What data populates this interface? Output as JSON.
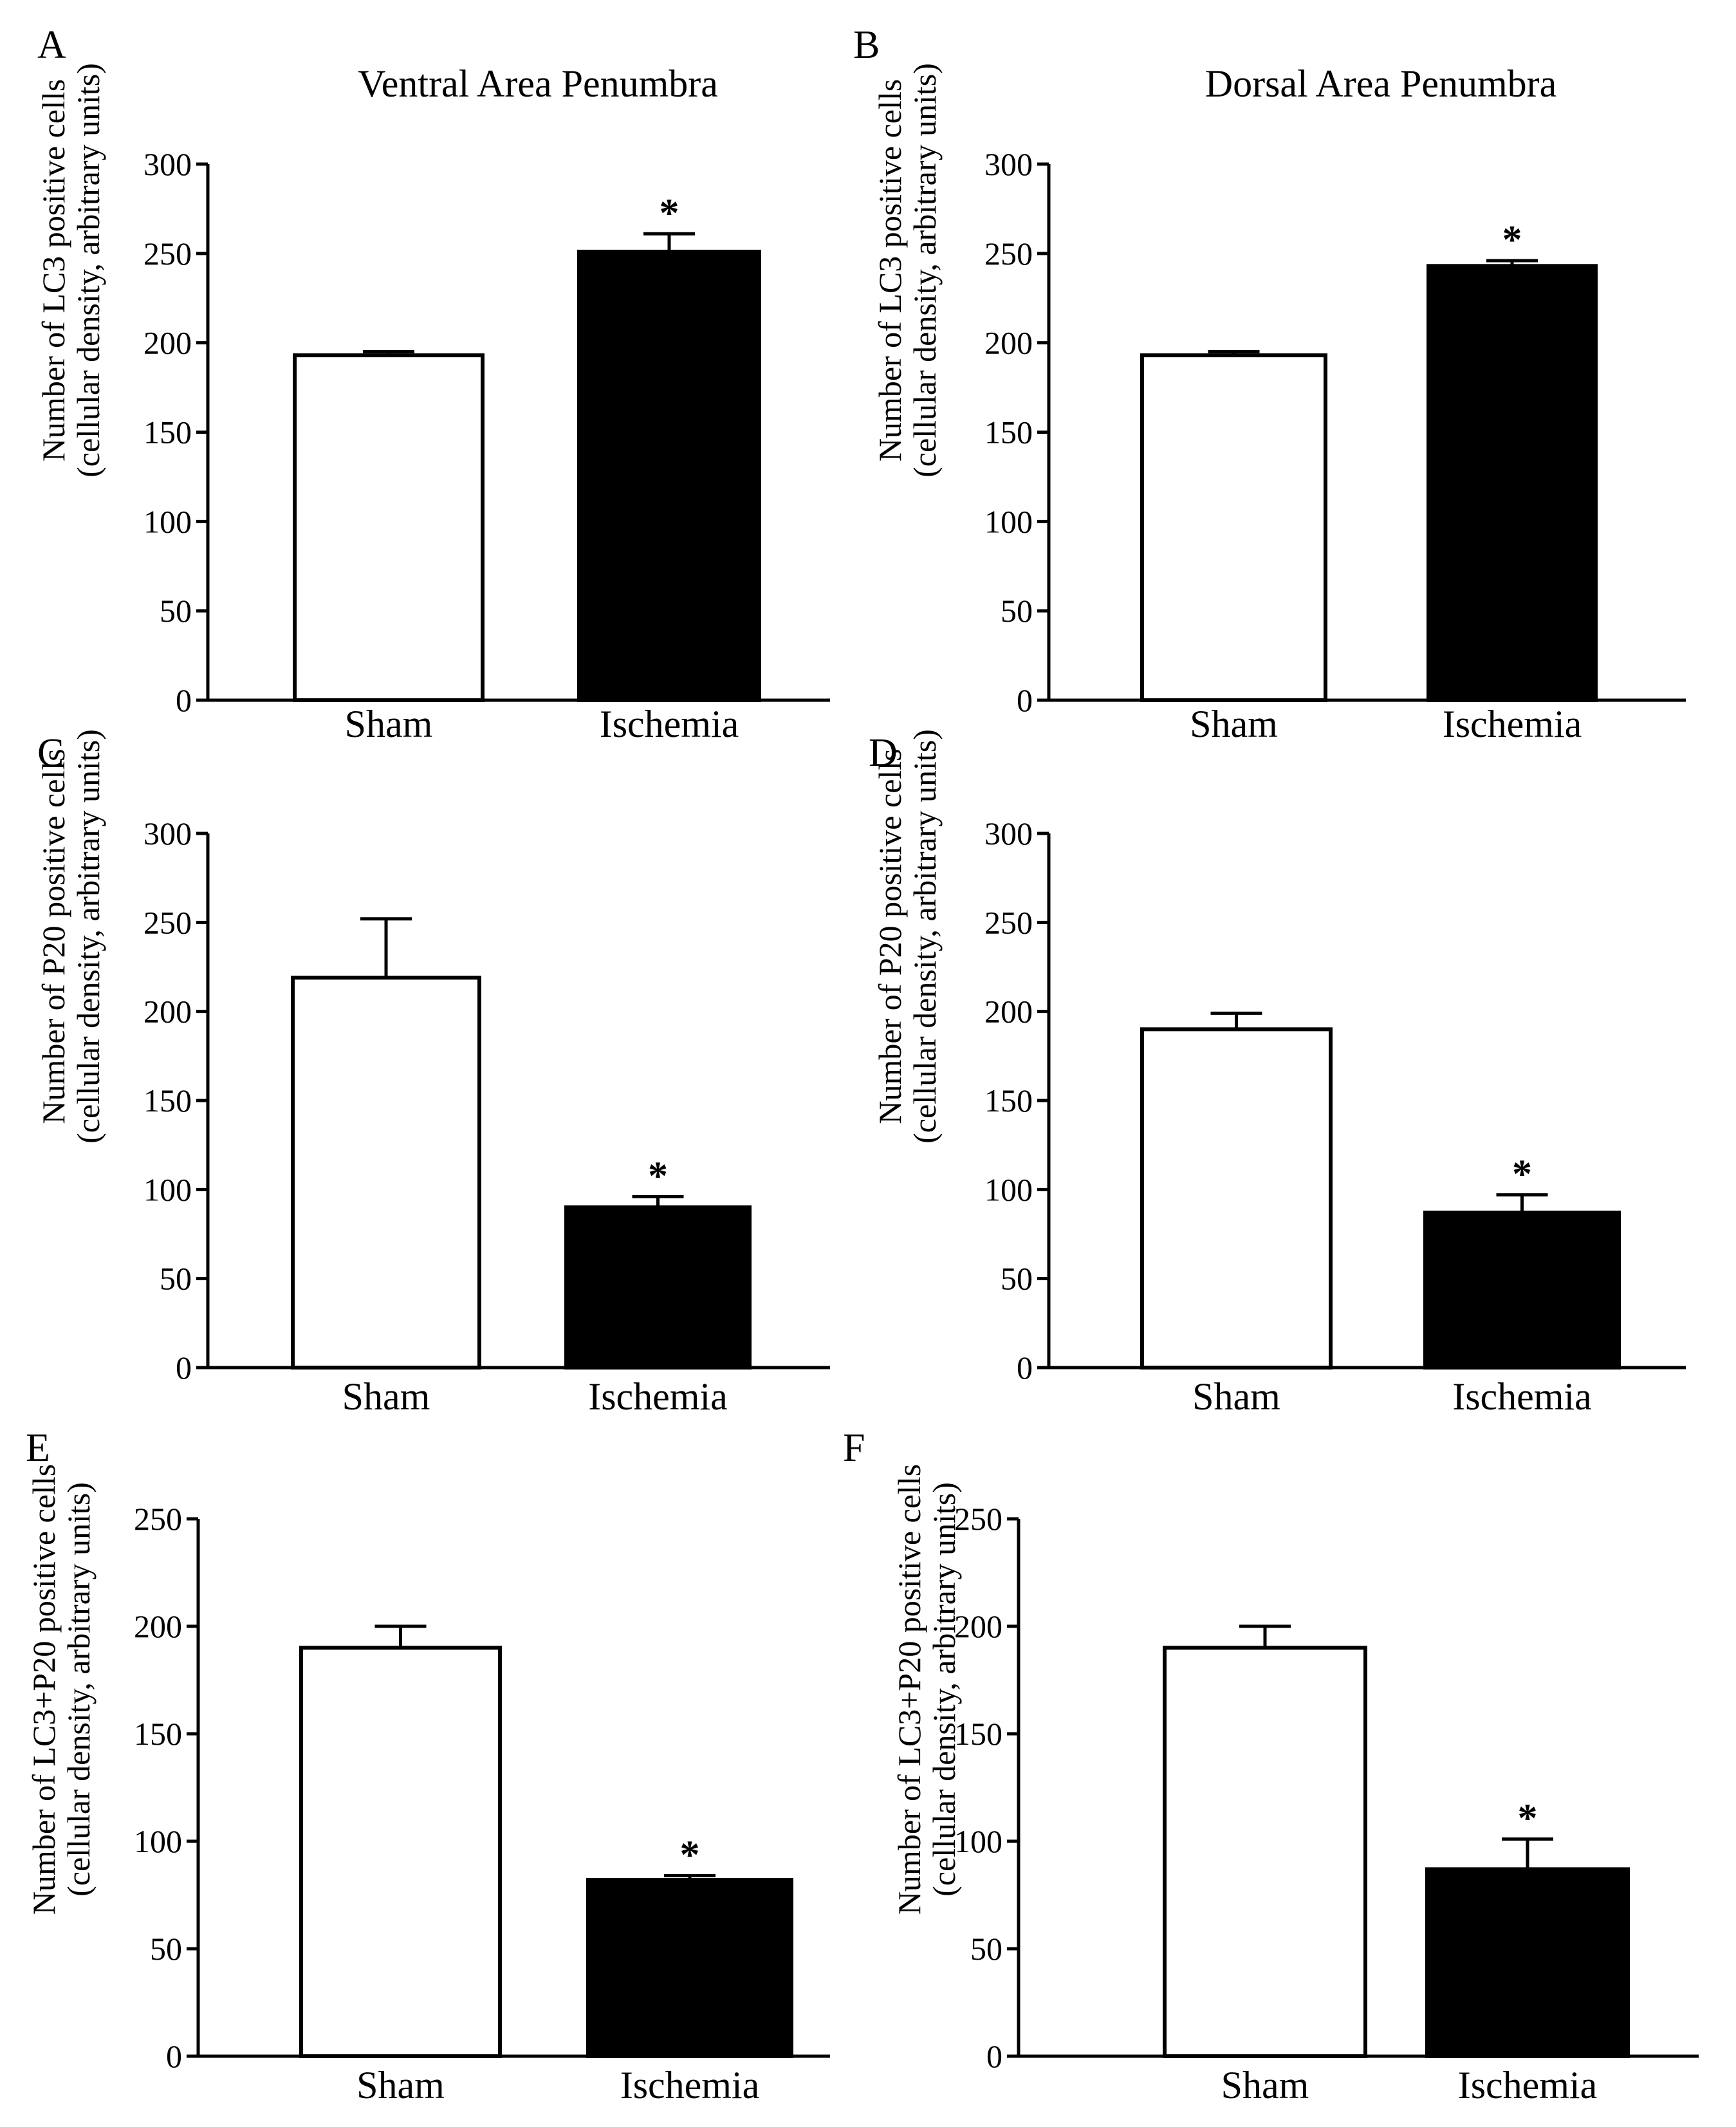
{
  "figure": {
    "column_titles": [
      "Ventral Area Penumbra",
      "Dorsal Area Penumbra"
    ]
  },
  "chart_data": [
    {
      "panel": "A",
      "type": "bar",
      "ylabel_line1": "Number of LC3 positive cells",
      "ylabel_line2": "(cellular density, arbitrary units)",
      "ylim": [
        0,
        300
      ],
      "yticks": [
        0,
        50,
        100,
        150,
        200,
        250,
        300
      ],
      "categories": [
        "Sham",
        "Ischemia"
      ],
      "values": [
        193,
        251
      ],
      "errors": [
        2,
        10
      ],
      "fills": [
        "#ffffff",
        "#000000"
      ],
      "significance": [
        "",
        "*"
      ]
    },
    {
      "panel": "B",
      "type": "bar",
      "ylabel_line1": "Number of LC3 positive cells",
      "ylabel_line2": "(cellular density, arbitrary units)",
      "ylim": [
        0,
        300
      ],
      "yticks": [
        0,
        50,
        100,
        150,
        200,
        250,
        300
      ],
      "categories": [
        "Sham",
        "Ischemia"
      ],
      "values": [
        193,
        243
      ],
      "errors": [
        2,
        3
      ],
      "fills": [
        "#ffffff",
        "#000000"
      ],
      "significance": [
        "",
        "*"
      ]
    },
    {
      "panel": "C",
      "type": "bar",
      "ylabel_line1": "Number of P20 positive cells",
      "ylabel_line2": "(cellular density, arbitrary units)",
      "ylim": [
        0,
        300
      ],
      "yticks": [
        0,
        50,
        100,
        150,
        200,
        250,
        300
      ],
      "categories": [
        "Sham",
        "Ischemia"
      ],
      "values": [
        219,
        90
      ],
      "errors": [
        33,
        6
      ],
      "fills": [
        "#ffffff",
        "#000000"
      ],
      "significance": [
        "",
        "*"
      ]
    },
    {
      "panel": "D",
      "type": "bar",
      "ylabel_line1": "Number of P20 positive cells",
      "ylabel_line2": "(cellular density, arbitrary units)",
      "ylim": [
        0,
        300
      ],
      "yticks": [
        0,
        50,
        100,
        150,
        200,
        250,
        300
      ],
      "categories": [
        "Sham",
        "Ischemia"
      ],
      "values": [
        190,
        87
      ],
      "errors": [
        9,
        10
      ],
      "fills": [
        "#ffffff",
        "#000000"
      ],
      "significance": [
        "",
        "*"
      ]
    },
    {
      "panel": "E",
      "type": "bar",
      "ylabel_line1": "Number of LC3+P20 positive cells",
      "ylabel_line2": "(cellular density, arbitrary units)",
      "ylim": [
        0,
        250
      ],
      "yticks": [
        0,
        50,
        100,
        150,
        200,
        250
      ],
      "categories": [
        "Sham",
        "Ischemia"
      ],
      "values": [
        190,
        82
      ],
      "errors": [
        10,
        2
      ],
      "fills": [
        "#ffffff",
        "#000000"
      ],
      "significance": [
        "",
        "*"
      ]
    },
    {
      "panel": "F",
      "type": "bar",
      "ylabel_line1": "Number of LC3+P20 positive cells",
      "ylabel_line2": "(cellular density, arbitrary units)",
      "ylim": [
        0,
        250
      ],
      "yticks": [
        0,
        50,
        100,
        150,
        200,
        250
      ],
      "categories": [
        "Sham",
        "Ischemia"
      ],
      "values": [
        190,
        87
      ],
      "errors": [
        10,
        14
      ],
      "fills": [
        "#ffffff",
        "#000000"
      ],
      "significance": [
        "",
        "*"
      ]
    }
  ]
}
